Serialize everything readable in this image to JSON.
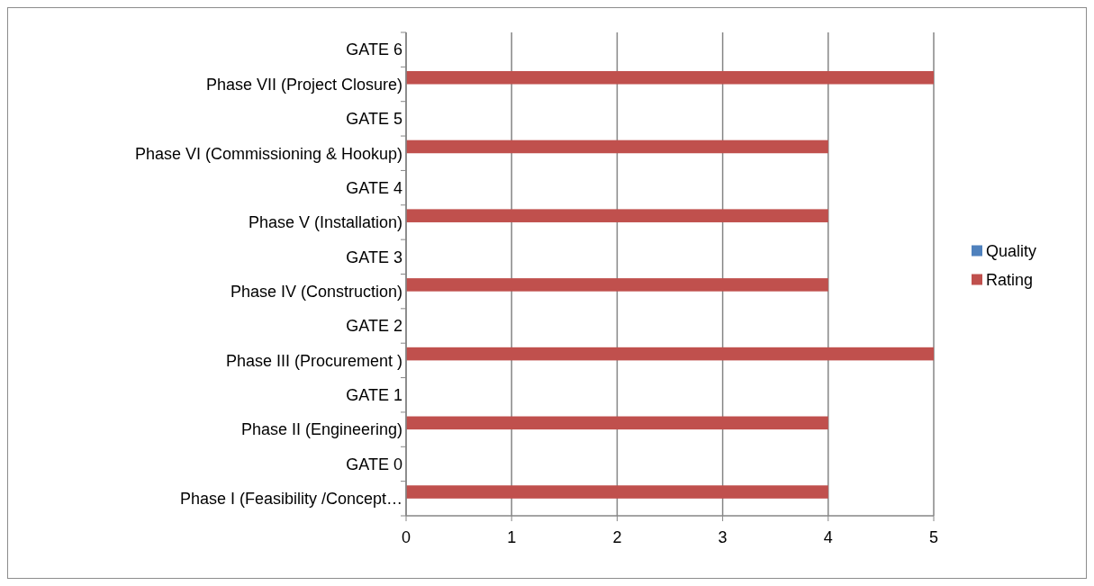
{
  "chart_data": {
    "type": "bar",
    "orientation": "horizontal",
    "categories": [
      "GATE 6",
      "Phase VII (Project Closure)",
      "GATE 5",
      "Phase VI (Commissioning & Hookup)",
      "GATE 4",
      "Phase V (Installation)",
      "GATE 3",
      "Phase IV (Construction)",
      "GATE 2",
      "Phase III (Procurement )",
      "GATE 1",
      "Phase II (Engineering)",
      "GATE 0",
      "Phase I (Feasibility /Concept…"
    ],
    "series": [
      {
        "name": "Quality",
        "color": "#4f81bd",
        "values": [
          null,
          null,
          null,
          null,
          null,
          null,
          null,
          null,
          null,
          null,
          null,
          null,
          null,
          null
        ]
      },
      {
        "name": "Rating",
        "color": "#c0504d",
        "values": [
          null,
          5,
          null,
          4,
          null,
          4,
          null,
          4,
          null,
          5,
          null,
          4,
          null,
          4
        ]
      }
    ],
    "xlim": [
      0,
      5
    ],
    "xticks": [
      0,
      1,
      2,
      3,
      4,
      5
    ],
    "grid": "x",
    "legend": "right"
  }
}
